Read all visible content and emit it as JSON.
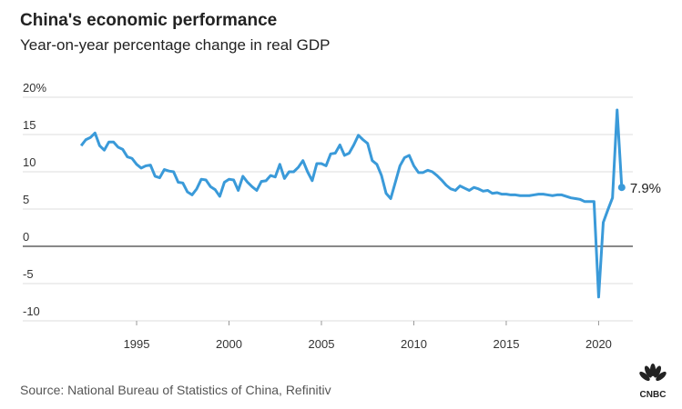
{
  "chart_data": {
    "type": "line",
    "title": "China's economic performance",
    "subtitle": "Year-on-year percentage change in real GDP",
    "source": "Source: National Bureau of Statistics of China, Refinitiv",
    "logo": "CNBC",
    "color": "#3a9ad9",
    "x": [
      1992,
      1992.25,
      1992.5,
      1992.75,
      1993,
      1993.25,
      1993.5,
      1993.75,
      1994,
      1994.25,
      1994.5,
      1994.75,
      1995,
      1995.25,
      1995.5,
      1995.75,
      1996,
      1996.25,
      1996.5,
      1996.75,
      1997,
      1997.25,
      1997.5,
      1997.75,
      1998,
      1998.25,
      1998.5,
      1998.75,
      1999,
      1999.25,
      1999.5,
      1999.75,
      2000,
      2000.25,
      2000.5,
      2000.75,
      2001,
      2001.25,
      2001.5,
      2001.75,
      2002,
      2002.25,
      2002.5,
      2002.75,
      2003,
      2003.25,
      2003.5,
      2003.75,
      2004,
      2004.25,
      2004.5,
      2004.75,
      2005,
      2005.25,
      2005.5,
      2005.75,
      2006,
      2006.25,
      2006.5,
      2006.75,
      2007,
      2007.25,
      2007.5,
      2007.75,
      2008,
      2008.25,
      2008.5,
      2008.75,
      2009,
      2009.25,
      2009.5,
      2009.75,
      2010,
      2010.25,
      2010.5,
      2010.75,
      2011,
      2011.25,
      2011.5,
      2011.75,
      2012,
      2012.25,
      2012.5,
      2012.75,
      2013,
      2013.25,
      2013.5,
      2013.75,
      2014,
      2014.25,
      2014.5,
      2014.75,
      2015,
      2015.25,
      2015.5,
      2015.75,
      2016,
      2016.25,
      2016.5,
      2016.75,
      2017,
      2017.25,
      2017.5,
      2017.75,
      2018,
      2018.25,
      2018.5,
      2018.75,
      2019,
      2019.25,
      2019.5,
      2019.75,
      2020,
      2020.25,
      2020.5,
      2020.75,
      2021,
      2021.25
    ],
    "values": [
      13.5,
      14.3,
      14.6,
      15.2,
      13.5,
      12.9,
      14.0,
      14.0,
      13.3,
      13.0,
      12.0,
      11.8,
      11.0,
      10.5,
      10.8,
      10.9,
      9.4,
      9.2,
      10.3,
      10.1,
      10.0,
      8.6,
      8.5,
      7.3,
      6.9,
      7.7,
      9.0,
      8.9,
      8.0,
      7.6,
      6.7,
      8.6,
      9.0,
      8.9,
      7.5,
      9.4,
      8.6,
      8.0,
      7.5,
      8.7,
      8.8,
      9.5,
      9.3,
      11.0,
      9.1,
      10.0,
      10.0,
      10.6,
      11.5,
      10.0,
      8.8,
      11.1,
      11.1,
      10.8,
      12.4,
      12.5,
      13.6,
      12.2,
      12.5,
      13.6,
      14.9,
      14.3,
      13.8,
      11.5,
      11.0,
      9.5,
      7.1,
      6.4,
      8.6,
      10.8,
      11.9,
      12.2,
      10.8,
      9.9,
      9.9,
      10.2,
      10.0,
      9.5,
      8.9,
      8.2,
      7.7,
      7.5,
      8.1,
      7.8,
      7.5,
      7.9,
      7.7,
      7.4,
      7.5,
      7.1,
      7.2,
      7.0,
      7.0,
      6.9,
      6.9,
      6.8,
      6.8,
      6.8,
      6.9,
      7.0,
      7.0,
      6.9,
      6.8,
      6.9,
      6.9,
      6.7,
      6.5,
      6.4,
      6.3,
      6.0,
      6.0,
      6.0,
      -6.8,
      3.2,
      4.9,
      6.5,
      18.3,
      7.9
    ],
    "annotations": [
      {
        "text": "7.9%"
      }
    ],
    "xlim": [
      1988.84,
      2021.85
    ],
    "xticks": [
      1995,
      2000,
      2005,
      2010,
      2015,
      2020
    ],
    "ylim": [
      -10,
      20
    ],
    "yticks": [
      {
        "value": 20,
        "label": "20%"
      },
      15,
      10,
      5,
      0,
      -5,
      -10
    ],
    "grid": true
  }
}
